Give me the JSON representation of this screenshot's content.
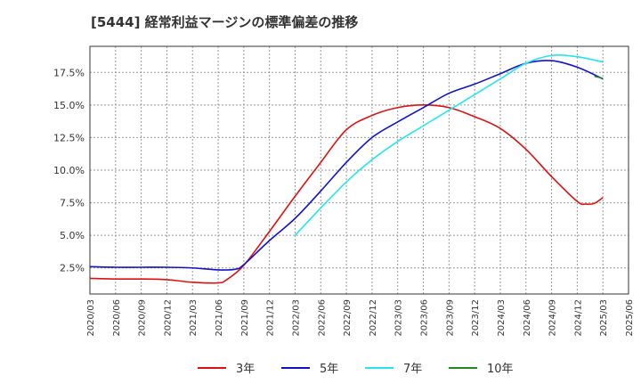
{
  "chart_data": {
    "type": "line",
    "title": "[5444]  経常利益マージンの標準偏差の推移",
    "xlabel": "",
    "ylabel": "",
    "ylim": [
      0.5,
      19.5
    ],
    "grid": true,
    "legend_position": "bottom",
    "y_ticks": [
      "2.5%",
      "5.0%",
      "7.5%",
      "10.0%",
      "12.5%",
      "15.0%",
      "17.5%"
    ],
    "y_tick_values": [
      2.5,
      5.0,
      7.5,
      10.0,
      12.5,
      15.0,
      17.5
    ],
    "x_ticks": [
      "2020/03",
      "2020/06",
      "2020/09",
      "2020/12",
      "2021/03",
      "2021/06",
      "2021/09",
      "2021/12",
      "2022/03",
      "2022/06",
      "2022/09",
      "2022/12",
      "2023/03",
      "2023/06",
      "2023/09",
      "2023/12",
      "2024/03",
      "2024/06",
      "2024/09",
      "2024/12",
      "2025/03",
      "2025/06"
    ],
    "series": [
      {
        "name": "3年",
        "color": "#dd1111",
        "x": [
          "2020/03",
          "2020/06",
          "2020/09",
          "2020/12",
          "2021/03",
          "2021/06",
          "2021/07",
          "2021/09",
          "2021/12",
          "2022/03",
          "2022/06",
          "2022/09",
          "2022/12",
          "2023/03",
          "2023/06",
          "2023/09",
          "2023/12",
          "2024/03",
          "2024/06",
          "2024/09",
          "2024/12",
          "2025/01",
          "2025/02",
          "2025/03"
        ],
        "values": [
          1.7,
          1.65,
          1.65,
          1.6,
          1.4,
          1.35,
          1.6,
          2.7,
          5.3,
          8.0,
          10.6,
          13.1,
          14.2,
          14.8,
          15.0,
          14.8,
          14.1,
          13.2,
          11.6,
          9.5,
          7.6,
          7.4,
          7.45,
          7.9
        ]
      },
      {
        "name": "5年",
        "color": "#1111cc",
        "x": [
          "2020/03",
          "2020/06",
          "2020/09",
          "2020/12",
          "2021/03",
          "2021/06",
          "2021/08",
          "2021/09",
          "2021/12",
          "2022/03",
          "2022/06",
          "2022/09",
          "2022/12",
          "2023/03",
          "2023/06",
          "2023/09",
          "2023/12",
          "2024/03",
          "2024/06",
          "2024/09",
          "2024/12",
          "2025/03"
        ],
        "values": [
          2.6,
          2.55,
          2.55,
          2.55,
          2.5,
          2.35,
          2.4,
          2.75,
          4.6,
          6.3,
          8.4,
          10.6,
          12.5,
          13.7,
          14.8,
          15.9,
          16.6,
          17.4,
          18.2,
          18.4,
          17.9,
          17.0
        ]
      },
      {
        "name": "7年",
        "color": "#22e5ee",
        "x": [
          "2022/03",
          "2022/06",
          "2022/09",
          "2022/12",
          "2023/03",
          "2023/06",
          "2023/09",
          "2023/12",
          "2024/03",
          "2024/06",
          "2024/09",
          "2024/12",
          "2025/03"
        ],
        "values": [
          5.0,
          7.1,
          9.1,
          10.8,
          12.2,
          13.4,
          14.6,
          15.8,
          17.0,
          18.2,
          18.8,
          18.7,
          18.3
        ]
      },
      {
        "name": "10年",
        "color": "#228822",
        "x": [
          "2025/02",
          "2025/03"
        ],
        "values": [
          17.2,
          17.05
        ]
      }
    ]
  }
}
